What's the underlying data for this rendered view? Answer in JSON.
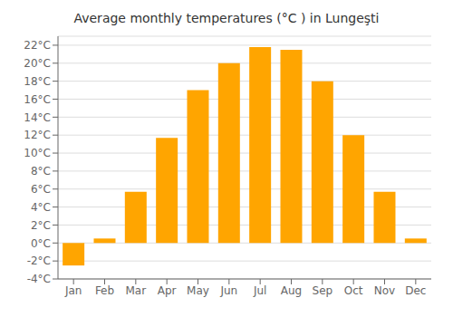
{
  "chart_data": {
    "type": "bar",
    "title": "Average monthly temperatures (°C ) in Lungeşti",
    "categories": [
      "Jan",
      "Feb",
      "Mar",
      "Apr",
      "May",
      "Jun",
      "Jul",
      "Aug",
      "Sep",
      "Oct",
      "Nov",
      "Dec"
    ],
    "values": [
      -2.5,
      0.5,
      5.7,
      11.7,
      17.0,
      20.0,
      21.8,
      21.5,
      18.0,
      12.0,
      5.7,
      0.5
    ],
    "color": "#FFA500",
    "ylim": [
      -4,
      23
    ],
    "yticks": [
      {
        "value": -4,
        "label": "-4°C"
      },
      {
        "value": -2,
        "label": "-2°C"
      },
      {
        "value": 0,
        "label": "0°C"
      },
      {
        "value": 2,
        "label": "2°C"
      },
      {
        "value": 4,
        "label": "4°C"
      },
      {
        "value": 6,
        "label": "6°C"
      },
      {
        "value": 8,
        "label": "8°C"
      },
      {
        "value": 10,
        "label": "10°C"
      },
      {
        "value": 12,
        "label": "12°C"
      },
      {
        "value": 14,
        "label": "14°C"
      },
      {
        "value": 16,
        "label": "16°C"
      },
      {
        "value": 18,
        "label": "18°C"
      },
      {
        "value": 20,
        "label": "20°C"
      },
      {
        "value": 22,
        "label": "22°C"
      }
    ],
    "grid": true
  }
}
